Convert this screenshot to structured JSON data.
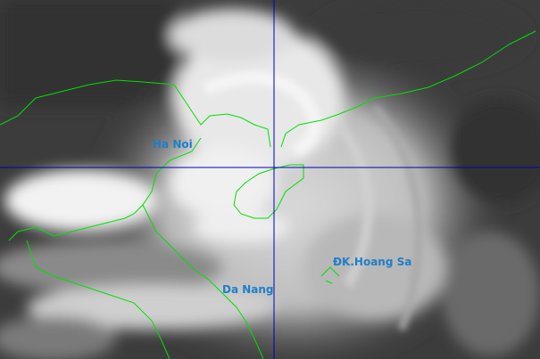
{
  "map": {
    "imagery": "infrared satellite",
    "colors": {
      "coastline": "#00e000",
      "crosshair": "#0000c0",
      "label": "#1e7fc8",
      "background": "#3c3c3c"
    },
    "labels": {
      "hanoi": "Ha Noi",
      "danang": "Da Nang",
      "hoangsa": "ĐK.Hoang Sa"
    }
  }
}
